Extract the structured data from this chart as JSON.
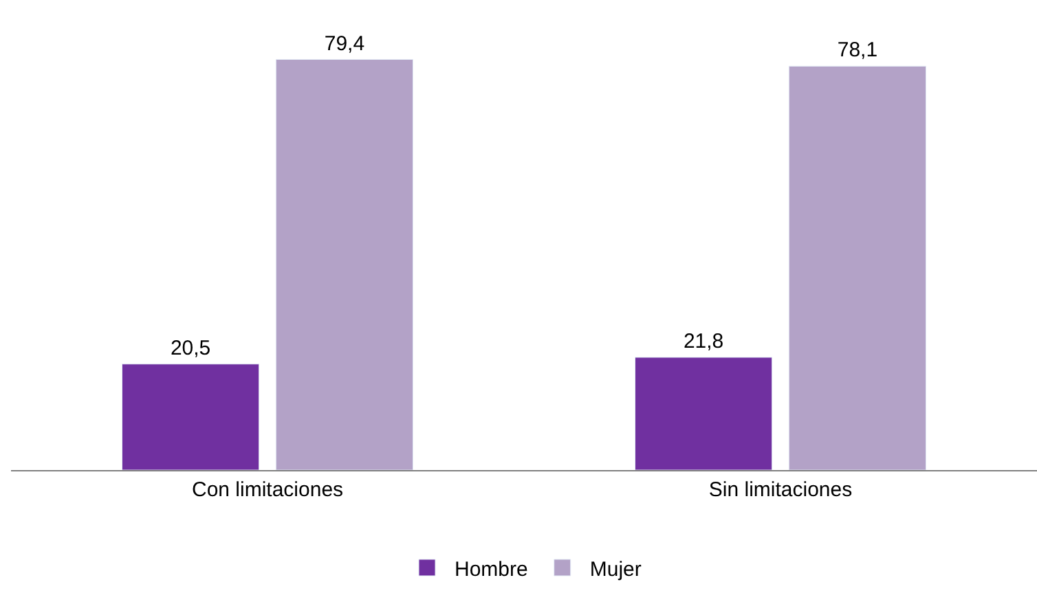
{
  "chart_data": {
    "type": "bar",
    "categories": [
      "Con limitaciones",
      "Sin limitaciones"
    ],
    "series": [
      {
        "name": "Hombre",
        "color": "#7030a0",
        "values": [
          20.5,
          21.8
        ],
        "value_labels": [
          "20,5",
          "21,8"
        ]
      },
      {
        "name": "Mujer",
        "color": "#b3a2c7",
        "values": [
          79.4,
          78.1
        ],
        "value_labels": [
          "79,4",
          "78,1"
        ]
      }
    ],
    "legend": "bottom"
  }
}
